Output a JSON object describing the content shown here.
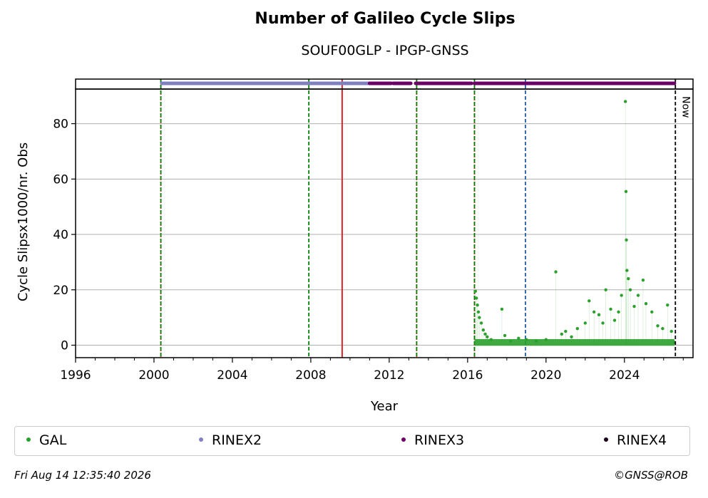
{
  "chart_data": {
    "type": "scatter",
    "title": "Number of Galileo Cycle Slips",
    "subtitle": "SOUF00GLP - IPGP-GNSS",
    "xlabel": "Year",
    "ylabel": "Cycle Slipsx1000/nr. Obs",
    "xlim": [
      1996,
      2027.5
    ],
    "ylim": [
      -4.5,
      92.5
    ],
    "xticks": [
      1996,
      2000,
      2004,
      2008,
      2012,
      2016,
      2020,
      2024
    ],
    "yticks": [
      0,
      20,
      40,
      60,
      80
    ],
    "grid": "horizontal",
    "now_label": "Now",
    "now_x": 2026.6,
    "vertical_lines": [
      {
        "x": 2000.35,
        "color": "#d62728",
        "style": "dotted"
      },
      {
        "x": 2000.35,
        "color": "#007f00",
        "style": "dashed"
      },
      {
        "x": 2007.9,
        "color": "#007f00",
        "style": "dashed"
      },
      {
        "x": 2009.6,
        "color": "#d62728",
        "style": "solid"
      },
      {
        "x": 2013.4,
        "color": "#d62728",
        "style": "dotted"
      },
      {
        "x": 2013.4,
        "color": "#007f00",
        "style": "dashed"
      },
      {
        "x": 2016.35,
        "color": "#d62728",
        "style": "dotted"
      },
      {
        "x": 2016.35,
        "color": "#007f00",
        "style": "dashed"
      },
      {
        "x": 2018.95,
        "color": "#1f5fa8",
        "style": "dashed"
      }
    ],
    "rinex_bars": [
      {
        "name": "RINEX2",
        "color": "#8080c0",
        "segments": [
          [
            2000.4,
            2004.6
          ],
          [
            2004.65,
            2011.0
          ]
        ]
      },
      {
        "name": "RINEX3",
        "color": "#6b0066",
        "segments": [
          [
            2011.0,
            2012.1
          ],
          [
            2012.2,
            2013.1
          ],
          [
            2013.35,
            2016.2
          ],
          [
            2016.35,
            2026.55
          ]
        ]
      },
      {
        "name": "RINEX4",
        "color": "#1a001a",
        "segments": []
      }
    ],
    "series": [
      {
        "name": "GAL",
        "color": "#2ca02c",
        "points": [
          [
            2016.4,
            19.5
          ],
          [
            2016.45,
            17.0
          ],
          [
            2016.5,
            14.5
          ],
          [
            2016.55,
            12.0
          ],
          [
            2016.6,
            10.0
          ],
          [
            2016.7,
            8.0
          ],
          [
            2016.8,
            5.5
          ],
          [
            2016.9,
            4.0
          ],
          [
            2017.0,
            3.0
          ],
          [
            2017.2,
            2.0
          ],
          [
            2017.75,
            13.0
          ],
          [
            2017.9,
            3.5
          ],
          [
            2018.2,
            1.5
          ],
          [
            2018.6,
            2.5
          ],
          [
            2019.0,
            2.0
          ],
          [
            2019.5,
            1.5
          ],
          [
            2020.0,
            2.0
          ],
          [
            2020.5,
            26.5
          ],
          [
            2020.8,
            4.0
          ],
          [
            2021.0,
            5.0
          ],
          [
            2021.3,
            3.0
          ],
          [
            2021.6,
            6.0
          ],
          [
            2022.0,
            8.0
          ],
          [
            2022.2,
            16.0
          ],
          [
            2022.45,
            12.0
          ],
          [
            2022.7,
            11.0
          ],
          [
            2022.9,
            8.0
          ],
          [
            2023.05,
            20.0
          ],
          [
            2023.3,
            13.0
          ],
          [
            2023.5,
            9.0
          ],
          [
            2023.7,
            12.0
          ],
          [
            2023.85,
            18.0
          ],
          [
            2024.05,
            88.0
          ],
          [
            2024.08,
            55.5
          ],
          [
            2024.1,
            38.0
          ],
          [
            2024.13,
            27.0
          ],
          [
            2024.2,
            24.0
          ],
          [
            2024.3,
            20.0
          ],
          [
            2024.5,
            14.0
          ],
          [
            2024.7,
            18.0
          ],
          [
            2024.95,
            23.5
          ],
          [
            2025.1,
            15.0
          ],
          [
            2025.4,
            12.0
          ],
          [
            2025.7,
            7.0
          ],
          [
            2025.95,
            6.0
          ],
          [
            2026.2,
            14.5
          ],
          [
            2026.4,
            5.0
          ],
          [
            2026.55,
            1.0
          ]
        ]
      }
    ],
    "legend": [
      "GAL",
      "RINEX2",
      "RINEX3",
      "RINEX4"
    ],
    "legend_placement": "bottom"
  },
  "footer": {
    "timestamp": "Fri Aug 14 12:35:40 2026",
    "credit": "©GNSS@ROB"
  },
  "colors": {
    "gal": "#2ca02c",
    "rinex2": "#8080c0",
    "rinex3": "#6b0066",
    "rinex4": "#1a001a"
  }
}
